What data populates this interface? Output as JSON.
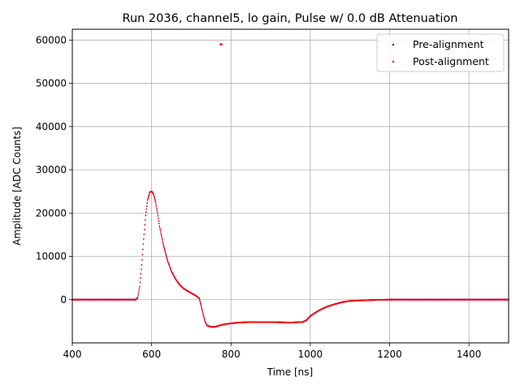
{
  "chart_data": {
    "type": "scatter",
    "title": "Run 2036, channel5, lo gain, Pulse w/ 0.0 dB Attenuation",
    "xlabel": "Time [ns]",
    "ylabel": "Amplitude [ADC Counts]",
    "xlim": [
      400,
      1500
    ],
    "ylim": [
      -10000,
      62500
    ],
    "xticks": [
      400,
      600,
      800,
      1000,
      1200,
      1400
    ],
    "yticks": [
      0,
      10000,
      20000,
      30000,
      40000,
      50000,
      60000
    ],
    "xtick_labels": [
      "400",
      "600",
      "800",
      "1000",
      "1200",
      "1400"
    ],
    "ytick_labels": [
      "0",
      "10000",
      "20000",
      "30000",
      "40000",
      "50000",
      "60000"
    ],
    "grid": true,
    "legend_position": "top-right",
    "series": [
      {
        "name": "Pre-alignment",
        "color": "#0000ff",
        "outliers": [
          [
            775,
            59000
          ]
        ],
        "x": [
          400,
          560,
          565,
          570,
          575,
          580,
          585,
          590,
          595,
          600,
          605,
          610,
          615,
          620,
          630,
          640,
          650,
          660,
          670,
          680,
          690,
          700,
          710,
          720,
          725,
          730,
          735,
          740,
          750,
          760,
          770,
          780,
          790,
          800,
          820,
          850,
          900,
          950,
          980,
          990,
          1000,
          1020,
          1040,
          1060,
          1080,
          1100,
          1150,
          1200,
          1300,
          1400,
          1500
        ],
        "y": [
          0,
          0,
          500,
          3000,
          8000,
          14000,
          19500,
          23000,
          24800,
          25000,
          24300,
          22500,
          20000,
          17000,
          12500,
          9000,
          6500,
          4800,
          3500,
          2600,
          2000,
          1500,
          1000,
          300,
          -1500,
          -3500,
          -5200,
          -6000,
          -6300,
          -6300,
          -6000,
          -5800,
          -5600,
          -5500,
          -5300,
          -5200,
          -5200,
          -5300,
          -5200,
          -4800,
          -3800,
          -2600,
          -1700,
          -1100,
          -600,
          -300,
          -100,
          0,
          0,
          0,
          0
        ]
      },
      {
        "name": "Post-alignment",
        "color": "#ff0000",
        "outliers": [
          [
            775,
            59000
          ]
        ],
        "x": [
          400,
          560,
          565,
          570,
          575,
          580,
          585,
          590,
          595,
          600,
          605,
          610,
          615,
          620,
          630,
          640,
          650,
          660,
          670,
          680,
          690,
          700,
          710,
          720,
          725,
          730,
          735,
          740,
          750,
          760,
          770,
          780,
          790,
          800,
          820,
          850,
          900,
          950,
          980,
          990,
          1000,
          1020,
          1040,
          1060,
          1080,
          1100,
          1150,
          1200,
          1300,
          1400,
          1500
        ],
        "y": [
          0,
          0,
          500,
          3000,
          8000,
          14000,
          19500,
          23000,
          24800,
          25000,
          24300,
          22500,
          20000,
          17000,
          12500,
          9000,
          6500,
          4800,
          3500,
          2600,
          2000,
          1500,
          1000,
          300,
          -1500,
          -3500,
          -5200,
          -6000,
          -6300,
          -6300,
          -6000,
          -5800,
          -5600,
          -5500,
          -5300,
          -5200,
          -5200,
          -5300,
          -5200,
          -4800,
          -3800,
          -2600,
          -1700,
          -1100,
          -600,
          -300,
          -100,
          0,
          0,
          0,
          0
        ]
      }
    ]
  }
}
